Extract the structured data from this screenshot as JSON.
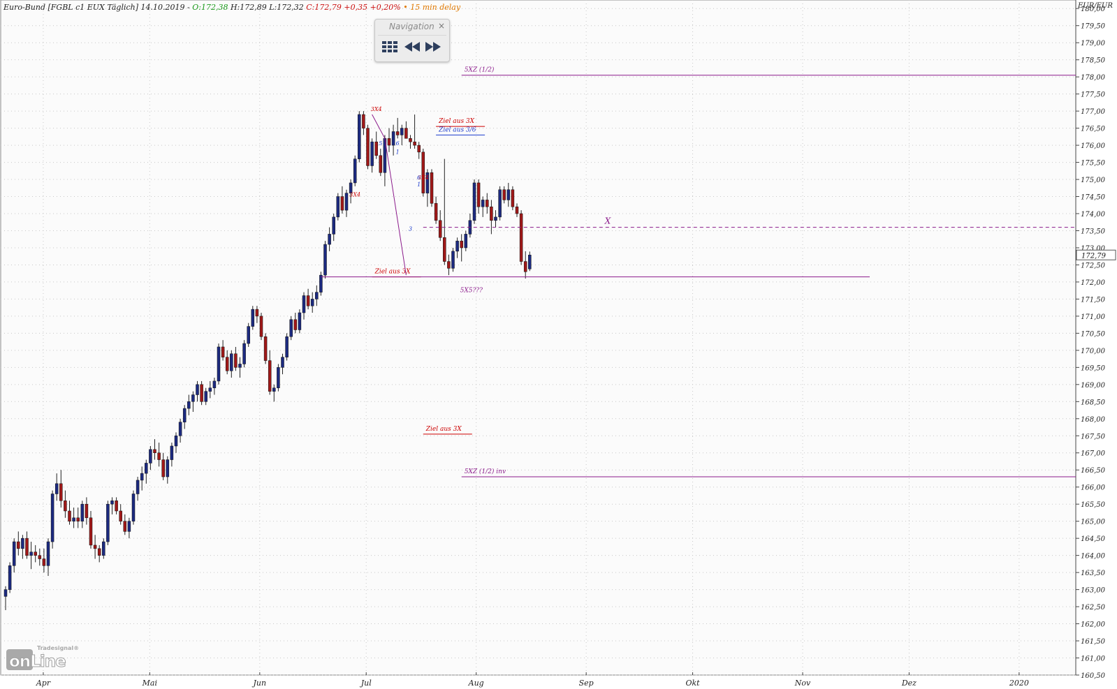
{
  "header": {
    "title": "Euro-Bund [FGBL c1 EUX Täglich] 14.10.2019 -",
    "open": "O:172,38",
    "hl": "H:172,89 L:172,32",
    "close": "C:172,79 +0,35 +0,20%",
    "delay": "• 15 min delay"
  },
  "navigation": {
    "title": "Navigation",
    "close_symbol": "×",
    "buttons": [
      {
        "icon": "grid-icon"
      },
      {
        "icon": "rewind-icon"
      },
      {
        "icon": "fast-forward-icon"
      }
    ]
  },
  "logo": {
    "top_text": "Tradesignal®",
    "main_text": "onLine"
  },
  "colors": {
    "up_candle": "#1c2a80",
    "down_candle": "#a01818",
    "magenta_line": "#8b1a8b",
    "red_line": "#cc0000",
    "blue_line": "#1a3acc",
    "grid": "#c8c8c8"
  },
  "chart_data": {
    "type": "candlestick",
    "instrument": "Euro-Bund [FGBL c1 EUX Täglich]",
    "y_axis_label": "EUR/EUR",
    "ylim": [
      160.5,
      180.25
    ],
    "y_ticks": [
      "180,00",
      "179,50",
      "179,00",
      "178,50",
      "178,00",
      "177,50",
      "177,00",
      "176,50",
      "176,00",
      "175,50",
      "175,00",
      "174,50",
      "174,00",
      "173,50",
      "173,00",
      "172,50",
      "172,00",
      "171,50",
      "171,00",
      "170,50",
      "170,00",
      "169,50",
      "169,00",
      "168,50",
      "168,00",
      "167,50",
      "167,00",
      "166,50",
      "166,00",
      "165,50",
      "165,00",
      "164,50",
      "164,00",
      "163,50",
      "163,00",
      "162,50",
      "162,00",
      "161,50",
      "161,00",
      "160,50"
    ],
    "last_price_label": "172,79",
    "last_price": 172.79,
    "x_labels": [
      {
        "label": "Apr",
        "date": "2019-04-01"
      },
      {
        "label": "Mai",
        "date": "2019-05-01"
      },
      {
        "label": "Jun",
        "date": "2019-06-01"
      },
      {
        "label": "Jul",
        "date": "2019-07-01"
      },
      {
        "label": "Aug",
        "date": "2019-08-01"
      },
      {
        "label": "Sep",
        "date": "2019-09-01"
      },
      {
        "label": "Okt",
        "date": "2019-10-01"
      },
      {
        "label": "Nov",
        "date": "2019-11-01"
      },
      {
        "label": "Dez",
        "date": "2019-12-01"
      },
      {
        "label": "2020",
        "date": "2020-01-01"
      }
    ],
    "candles": [
      [
        162.8,
        163.1,
        162.4,
        163.0
      ],
      [
        163.0,
        163.8,
        162.9,
        163.7
      ],
      [
        163.7,
        164.5,
        163.5,
        164.4
      ],
      [
        164.4,
        164.7,
        164.0,
        164.2
      ],
      [
        164.2,
        164.6,
        163.9,
        164.5
      ],
      [
        164.5,
        164.7,
        163.9,
        164.0
      ],
      [
        164.0,
        164.4,
        163.6,
        164.1
      ],
      [
        164.1,
        164.3,
        163.8,
        164.0
      ],
      [
        164.0,
        164.2,
        163.7,
        163.9
      ],
      [
        163.9,
        164.2,
        163.5,
        163.7
      ],
      [
        163.7,
        164.5,
        163.4,
        164.4
      ],
      [
        164.4,
        165.9,
        164.2,
        165.8
      ],
      [
        165.8,
        166.4,
        165.6,
        166.1
      ],
      [
        166.1,
        166.5,
        165.4,
        165.6
      ],
      [
        165.6,
        165.9,
        165.1,
        165.3
      ],
      [
        165.3,
        165.6,
        164.9,
        165.0
      ],
      [
        165.0,
        165.4,
        164.8,
        165.1
      ],
      [
        165.1,
        165.4,
        164.8,
        165.0
      ],
      [
        165.0,
        165.6,
        164.8,
        165.5
      ],
      [
        165.5,
        165.7,
        164.9,
        165.1
      ],
      [
        165.1,
        165.3,
        164.2,
        164.3
      ],
      [
        164.3,
        164.6,
        163.9,
        164.2
      ],
      [
        164.2,
        164.3,
        163.8,
        164.0
      ],
      [
        164.0,
        164.5,
        163.9,
        164.4
      ],
      [
        164.4,
        165.6,
        164.3,
        165.5
      ],
      [
        165.5,
        165.7,
        165.2,
        165.6
      ],
      [
        165.6,
        165.7,
        165.2,
        165.3
      ],
      [
        165.3,
        165.5,
        164.9,
        165.0
      ],
      [
        165.0,
        165.2,
        164.6,
        164.7
      ],
      [
        164.7,
        165.1,
        164.5,
        165.0
      ],
      [
        165.0,
        165.9,
        164.9,
        165.8
      ],
      [
        165.8,
        166.3,
        165.6,
        166.2
      ],
      [
        166.2,
        166.6,
        165.9,
        166.4
      ],
      [
        166.4,
        166.8,
        166.1,
        166.7
      ],
      [
        166.7,
        167.2,
        166.5,
        167.1
      ],
      [
        167.1,
        167.4,
        166.8,
        167.0
      ],
      [
        167.0,
        167.3,
        166.6,
        166.8
      ],
      [
        166.8,
        167.0,
        166.2,
        166.3
      ],
      [
        166.3,
        166.9,
        166.1,
        166.8
      ],
      [
        166.8,
        167.3,
        166.6,
        167.2
      ],
      [
        167.2,
        167.6,
        167.0,
        167.5
      ],
      [
        167.5,
        168.0,
        167.3,
        167.9
      ],
      [
        167.9,
        168.4,
        167.7,
        168.3
      ],
      [
        168.3,
        168.7,
        168.1,
        168.5
      ],
      [
        168.5,
        168.8,
        168.2,
        168.7
      ],
      [
        168.7,
        169.1,
        168.5,
        169.0
      ],
      [
        169.0,
        169.1,
        168.4,
        168.5
      ],
      [
        168.5,
        168.9,
        168.4,
        168.8
      ],
      [
        168.8,
        169.1,
        168.6,
        168.9
      ],
      [
        168.9,
        169.2,
        168.7,
        169.1
      ],
      [
        169.1,
        170.2,
        169.0,
        170.1
      ],
      [
        170.1,
        170.3,
        169.7,
        169.8
      ],
      [
        169.8,
        170.0,
        169.3,
        169.4
      ],
      [
        169.4,
        170.0,
        169.2,
        169.9
      ],
      [
        169.9,
        170.1,
        169.4,
        169.5
      ],
      [
        169.5,
        169.8,
        169.2,
        169.6
      ],
      [
        169.6,
        170.3,
        169.5,
        170.2
      ],
      [
        170.2,
        170.8,
        170.1,
        170.7
      ],
      [
        170.7,
        171.3,
        170.6,
        171.2
      ],
      [
        171.2,
        171.3,
        170.8,
        171.0
      ],
      [
        171.0,
        171.1,
        170.3,
        170.4
      ],
      [
        170.4,
        170.5,
        169.6,
        169.7
      ],
      [
        169.7,
        170.0,
        168.7,
        168.8
      ],
      [
        168.8,
        169.0,
        168.5,
        168.9
      ],
      [
        168.9,
        169.6,
        168.8,
        169.5
      ],
      [
        169.5,
        169.9,
        169.3,
        169.8
      ],
      [
        169.8,
        170.5,
        169.7,
        170.4
      ],
      [
        170.4,
        171.0,
        170.3,
        170.9
      ],
      [
        170.9,
        171.1,
        170.5,
        170.6
      ],
      [
        170.6,
        171.2,
        170.5,
        171.1
      ],
      [
        171.1,
        171.7,
        170.9,
        171.6
      ],
      [
        171.6,
        171.8,
        171.2,
        171.3
      ],
      [
        171.3,
        171.7,
        171.1,
        171.5
      ],
      [
        171.5,
        171.9,
        171.3,
        171.7
      ],
      [
        171.7,
        172.3,
        171.6,
        172.2
      ],
      [
        172.2,
        173.2,
        172.1,
        173.1
      ],
      [
        173.1,
        173.6,
        172.9,
        173.4
      ],
      [
        173.4,
        174.0,
        173.2,
        173.9
      ],
      [
        173.9,
        174.6,
        173.8,
        174.5
      ],
      [
        174.5,
        174.8,
        174.0,
        174.1
      ],
      [
        174.1,
        174.7,
        173.9,
        174.6
      ],
      [
        174.6,
        175.0,
        174.3,
        174.9
      ],
      [
        174.9,
        175.7,
        174.8,
        175.6
      ],
      [
        175.6,
        177.0,
        175.5,
        176.9
      ],
      [
        176.9,
        177.0,
        176.3,
        176.5
      ],
      [
        176.5,
        176.6,
        175.3,
        175.4
      ],
      [
        175.4,
        176.2,
        175.2,
        176.1
      ],
      [
        176.1,
        176.4,
        175.6,
        175.7
      ],
      [
        175.7,
        175.9,
        175.1,
        175.2
      ],
      [
        175.2,
        176.3,
        174.8,
        176.2
      ],
      [
        176.2,
        176.5,
        175.8,
        176.0
      ],
      [
        176.0,
        176.6,
        175.7,
        176.4
      ],
      [
        176.4,
        176.8,
        176.2,
        176.3
      ],
      [
        176.3,
        176.6,
        176.0,
        176.5
      ],
      [
        176.5,
        176.7,
        176.2,
        176.2
      ],
      [
        176.2,
        176.3,
        175.9,
        176.1
      ],
      [
        176.1,
        176.9,
        175.9,
        176.0
      ],
      [
        176.0,
        176.1,
        175.6,
        175.8
      ],
      [
        175.8,
        175.9,
        174.5,
        174.6
      ],
      [
        174.6,
        175.3,
        174.2,
        175.2
      ],
      [
        175.2,
        175.3,
        174.2,
        174.3
      ],
      [
        174.3,
        174.5,
        173.7,
        173.8
      ],
      [
        173.8,
        174.1,
        173.2,
        173.3
      ],
      [
        173.3,
        175.6,
        172.5,
        172.6
      ],
      [
        172.6,
        172.8,
        172.2,
        172.4
      ],
      [
        172.4,
        173.0,
        172.3,
        172.9
      ],
      [
        172.9,
        173.3,
        172.7,
        173.2
      ],
      [
        173.2,
        173.4,
        172.6,
        173.0
      ],
      [
        173.0,
        173.5,
        172.9,
        173.4
      ],
      [
        173.4,
        174.0,
        173.3,
        173.8
      ],
      [
        173.8,
        175.0,
        173.7,
        174.9
      ],
      [
        174.9,
        175.0,
        174.0,
        174.2
      ],
      [
        174.2,
        174.5,
        173.9,
        174.4
      ],
      [
        174.4,
        174.6,
        174.0,
        174.2
      ],
      [
        174.2,
        174.4,
        173.4,
        173.8
      ],
      [
        173.8,
        174.1,
        173.6,
        173.9
      ],
      [
        173.9,
        174.8,
        173.8,
        174.7
      ],
      [
        174.7,
        174.8,
        174.3,
        174.4
      ],
      [
        174.4,
        174.9,
        174.2,
        174.7
      ],
      [
        174.7,
        174.8,
        174.1,
        174.2
      ],
      [
        174.2,
        174.3,
        173.9,
        174.0
      ],
      [
        174.0,
        174.1,
        172.5,
        172.6
      ],
      [
        172.6,
        172.9,
        172.1,
        172.3
      ],
      [
        172.38,
        172.89,
        172.32,
        172.79
      ]
    ],
    "annotations": [
      {
        "text": "5XZ (1/2)",
        "price": 178.05,
        "color": "magenta",
        "start": 107
      },
      {
        "text": "Ziel aus 3X",
        "price": 176.55,
        "color": "red",
        "start": 101
      },
      {
        "text": "Ziel aus 3/6",
        "price": 176.3,
        "color": "blue",
        "start": 101
      },
      {
        "text": "X",
        "price": 173.6,
        "color": "magenta",
        "start": 98,
        "dashed": true
      },
      {
        "text": "Ziel aus 3X",
        "price": 172.15,
        "color": "red",
        "start": 86
      },
      {
        "text": "Ziel aus 3X",
        "price": 167.55,
        "color": "red",
        "start": 98
      },
      {
        "text": "5XZ (1/2) inv",
        "price": 166.3,
        "color": "magenta",
        "start": 107
      },
      {
        "text": "5X5???",
        "price": 171.6,
        "color": "magenta",
        "start": 106,
        "label_only": true
      }
    ],
    "wave_labels": [
      {
        "text": "3X4",
        "index": 87,
        "price": 177.0,
        "color": "red"
      },
      {
        "text": "3X4",
        "index": 82,
        "price": 174.5,
        "color": "red"
      },
      {
        "text": "3X4",
        "index": 98,
        "price": 175.0,
        "color": "red"
      },
      {
        "text": "5",
        "index": 88,
        "price": 176.0,
        "color": "blue"
      },
      {
        "text": "6",
        "index": 92,
        "price": 176.0,
        "color": "blue"
      },
      {
        "text": "1",
        "index": 92,
        "price": 175.75,
        "color": "blue"
      },
      {
        "text": "3",
        "index": 95,
        "price": 173.5,
        "color": "blue"
      },
      {
        "text": "6",
        "index": 97,
        "price": 175.0,
        "color": "blue"
      },
      {
        "text": "1",
        "index": 97,
        "price": 174.8,
        "color": "blue"
      }
    ],
    "grid": true
  }
}
